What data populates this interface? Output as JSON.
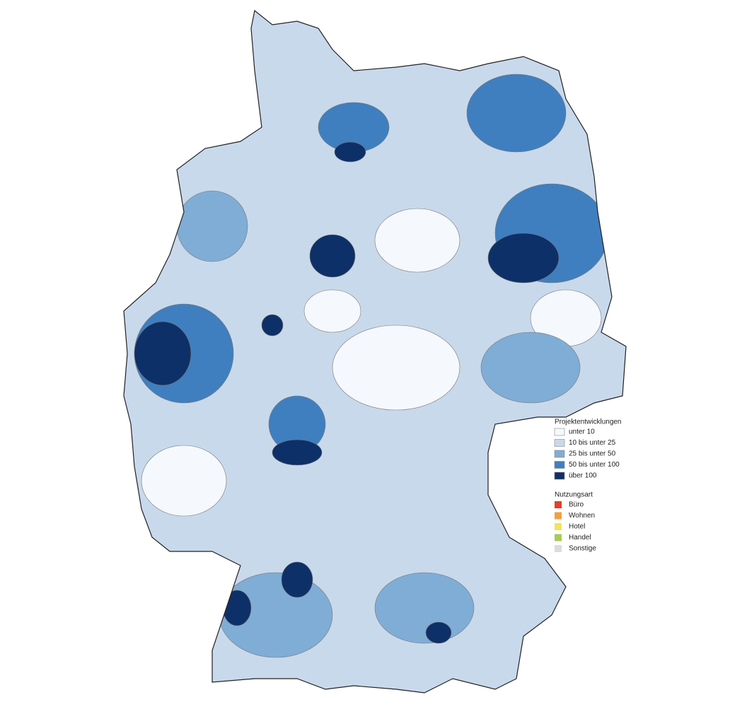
{
  "legend": {
    "choropleth": {
      "title": "Projektentwicklungen",
      "classes": [
        {
          "label": "unter 10",
          "color": "#f5f8fc"
        },
        {
          "label": "10 bis unter 25",
          "color": "#c9d9ec"
        },
        {
          "label": "25 bis unter 50",
          "color": "#7fadd6"
        },
        {
          "label": "50 bis unter 100",
          "color": "#3f7fbf"
        },
        {
          "label": "über 100",
          "color": "#0e3068"
        }
      ]
    },
    "pies": {
      "title": "Nutzungsart",
      "classes": [
        {
          "label": "Büro",
          "color": "#e5402a"
        },
        {
          "label": "Wohnen",
          "color": "#f0a040"
        },
        {
          "label": "Hotel",
          "color": "#f7e05a"
        },
        {
          "label": "Handel",
          "color": "#a6cc5a"
        },
        {
          "label": "Sonstige",
          "color": "#dcdcdc"
        }
      ]
    }
  }
}
